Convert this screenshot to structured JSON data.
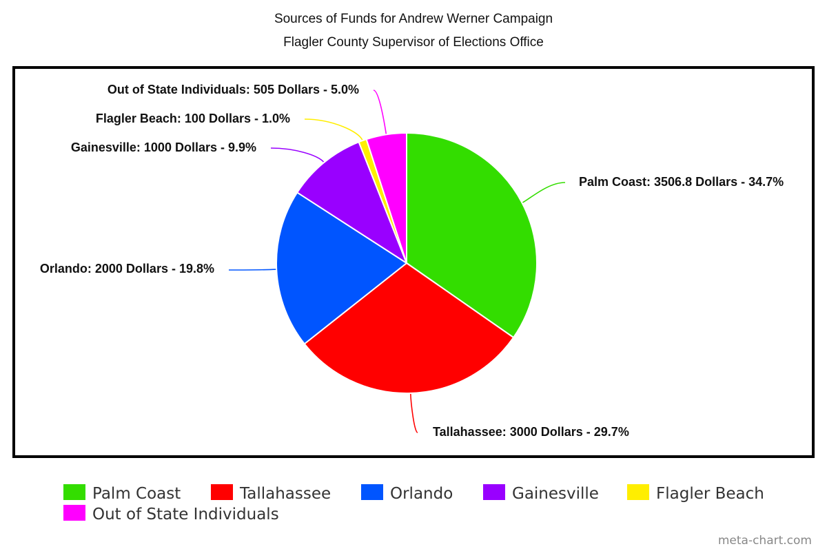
{
  "chart_data": {
    "type": "pie",
    "title": "Sources of Funds for Andrew Werner Campaign",
    "subtitle": "Flagler County Supervisor of Elections Office",
    "unit": "Dollars",
    "legend_position": "bottom",
    "slices": [
      {
        "name": "Palm Coast",
        "value": 3506.8,
        "percent": "34.7%",
        "color": "#33dd00",
        "label": "Palm Coast: 3506.8 Dollars - 34.7%"
      },
      {
        "name": "Tallahassee",
        "value": 3000,
        "percent": "29.7%",
        "color": "#ff0000",
        "label": "Tallahassee: 3000 Dollars - 29.7%"
      },
      {
        "name": "Orlando",
        "value": 2000,
        "percent": "19.8%",
        "color": "#0055ff",
        "label": "Orlando: 2000 Dollars - 19.8%"
      },
      {
        "name": "Gainesville",
        "value": 1000,
        "percent": "9.9%",
        "color": "#9900ff",
        "label": "Gainesville: 1000 Dollars - 9.9%"
      },
      {
        "name": "Flagler Beach",
        "value": 100,
        "percent": "1.0%",
        "color": "#ffee00",
        "label": "Flagler Beach: 100 Dollars - 1.0%"
      },
      {
        "name": "Out of State Individuals",
        "value": 505,
        "percent": "5.0%",
        "color": "#ff00ff",
        "label": "Out of State Individuals: 505 Dollars - 5.0%"
      }
    ]
  },
  "watermark": "meta-chart.com"
}
